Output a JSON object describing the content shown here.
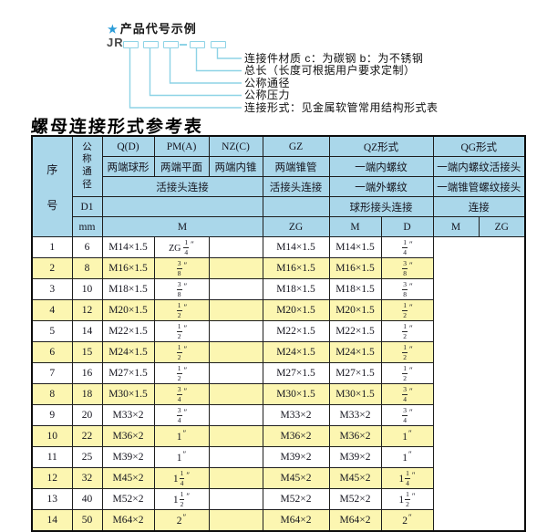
{
  "colors": {
    "header_bg": "#aad7ea",
    "row_alt_bg": "#fcf6b1",
    "accent_line": "#8ed3e6",
    "star": "#2b9cd8",
    "border": "#1e1e1e"
  },
  "code_diagram": {
    "star_icon": "★",
    "heading": "产品代号示例",
    "code_prefix": "JR",
    "box_count": 5,
    "labels": [
      "连接件材质  c：为碳钢  b：为不锈钢",
      "总长（长度可根据用户要求定制）",
      "公称通径",
      "公称压力",
      "连接形式：见金属软管常用结构形式表"
    ]
  },
  "table": {
    "title": "螺母连接形式参考表",
    "inch_mark": "″",
    "header": {
      "seq": "序号",
      "dn": "公称通径",
      "d1": "D1",
      "unit": "mm",
      "groups": [
        "Q(D)",
        "PM(A)",
        "NZ(C)",
        "GZ",
        "QZ形式",
        "QG形式"
      ],
      "desc_q": "两端球形",
      "desc_pm": "两端平面",
      "desc_nz": "两端内锥",
      "desc_gz": "两端锥管",
      "desc_qz_1": "一端内螺纹",
      "desc_qz_2": "一端外螺纹",
      "desc_qg_1": "一端内螺纹活接头",
      "desc_qg_2": "一端锥管螺纹接头",
      "conn_union": "活接头连接",
      "conn_gz": "活接头连接",
      "conn_qz": "球形接头连接",
      "conn_qg": "连接",
      "sub": {
        "m": "M",
        "zg": "ZG",
        "qz_m": "M",
        "qz_d": "D",
        "qg_m": "M",
        "qg_zg": "ZG"
      }
    },
    "rows": [
      {
        "no": "1",
        "dn": "6",
        "m": "M14×1.5",
        "zg": {
          "p": "ZG",
          "f": "1/4"
        },
        "qz_m": "",
        "qz_d": "M14×1.5",
        "qg_m": "M14×1.5",
        "qg_zg": {
          "f": "1/4"
        }
      },
      {
        "no": "2",
        "dn": "8",
        "m": "M16×1.5",
        "zg": {
          "f": "3/8"
        },
        "qz_m": "",
        "qz_d": "M16×1.5",
        "qg_m": "M16×1.5",
        "qg_zg": {
          "f": "3/8"
        }
      },
      {
        "no": "3",
        "dn": "10",
        "m": "M18×1.5",
        "zg": {
          "f": "3/8"
        },
        "qz_m": "",
        "qz_d": "M18×1.5",
        "qg_m": "M18×1.5",
        "qg_zg": {
          "f": "3/8"
        }
      },
      {
        "no": "4",
        "dn": "12",
        "m": "M20×1.5",
        "zg": {
          "f": "1/2"
        },
        "qz_m": "",
        "qz_d": "M20×1.5",
        "qg_m": "M20×1.5",
        "qg_zg": {
          "f": "1/2"
        }
      },
      {
        "no": "5",
        "dn": "14",
        "m": "M22×1.5",
        "zg": {
          "f": "1/2"
        },
        "qz_m": "",
        "qz_d": "M22×1.5",
        "qg_m": "M22×1.5",
        "qg_zg": {
          "f": "1/2"
        }
      },
      {
        "no": "6",
        "dn": "15",
        "m": "M24×1.5",
        "zg": {
          "f": "1/2"
        },
        "qz_m": "",
        "qz_d": "M24×1.5",
        "qg_m": "M24×1.5",
        "qg_zg": {
          "f": "1/2"
        }
      },
      {
        "no": "7",
        "dn": "16",
        "m": "M27×1.5",
        "zg": {
          "f": "1/2"
        },
        "qz_m": "",
        "qz_d": "M27×1.5",
        "qg_m": "M27×1.5",
        "qg_zg": {
          "f": "1/2"
        }
      },
      {
        "no": "8",
        "dn": "18",
        "m": "M30×1.5",
        "zg": {
          "f": "3/4"
        },
        "qz_m": "",
        "qz_d": "M30×1.5",
        "qg_m": "M30×1.5",
        "qg_zg": {
          "f": "3/4"
        }
      },
      {
        "no": "9",
        "dn": "20",
        "m": "M33×2",
        "zg": {
          "f": "3/4"
        },
        "qz_m": "",
        "qz_d": "M33×2",
        "qg_m": "M33×2",
        "qg_zg": {
          "f": "3/4"
        }
      },
      {
        "no": "10",
        "dn": "22",
        "m": "M36×2",
        "zg": {
          "w": "1"
        },
        "qz_m": "",
        "qz_d": "M36×2",
        "qg_m": "M36×2",
        "qg_zg": {
          "w": "1"
        }
      },
      {
        "no": "11",
        "dn": "25",
        "m": "M39×2",
        "zg": {
          "w": "1"
        },
        "qz_m": "",
        "qz_d": "M39×2",
        "qg_m": "M39×2",
        "qg_zg": {
          "w": "1"
        }
      },
      {
        "no": "12",
        "dn": "32",
        "m": "M45×2",
        "zg": {
          "w": "1",
          "f": "1/4"
        },
        "qz_m": "",
        "qz_d": "M45×2",
        "qg_m": "M45×2",
        "qg_zg": {
          "w": "1",
          "f": "1/4"
        }
      },
      {
        "no": "13",
        "dn": "40",
        "m": "M52×2",
        "zg": {
          "w": "1",
          "f": "1/2"
        },
        "qz_m": "",
        "qz_d": "M52×2",
        "qg_m": "M52×2",
        "qg_zg": {
          "w": "1",
          "f": "1/2"
        }
      },
      {
        "no": "14",
        "dn": "50",
        "m": "M64×2",
        "zg": {
          "w": "2"
        },
        "qz_m": "",
        "qz_d": "M64×2",
        "qg_m": "M64×2",
        "qg_zg": {
          "w": "2"
        }
      }
    ]
  }
}
